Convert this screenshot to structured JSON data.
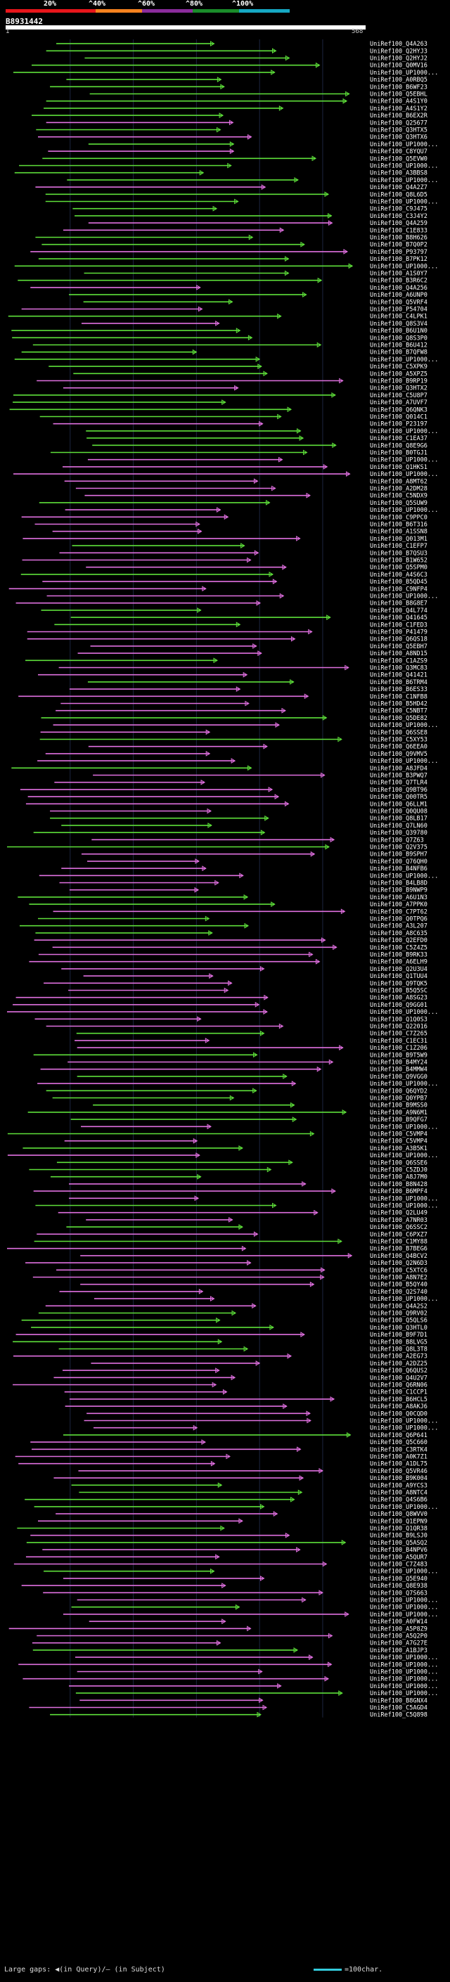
{
  "header": {
    "query_id": "B8931442",
    "ruler_start": "1",
    "ruler_end": "568"
  },
  "legend": {
    "labels": [
      "20%",
      "^40%",
      "^60%",
      "^80%",
      "^100%"
    ],
    "colors": [
      "#e8161b",
      "#f5821f",
      "#8b2c9c",
      "#1a8c2a",
      "#16a8c4"
    ]
  },
  "footer": {
    "gaps_text": "Large gaps: ◀(in Query)/— (in Subject)",
    "scale_text": "=100char."
  },
  "chart_data": {
    "type": "alignment-overview",
    "query_length": 568,
    "hits": [
      "UniRef100_Q4A263",
      "UniRef100_Q2HYJ3",
      "UniRef100_Q2HYJ2",
      "UniRef100_Q0MV16",
      "UniRef100_UP1000...",
      "UniRef100_A0RBQ5",
      "UniRef100_B6WF23",
      "UniRef100_Q5EBHL",
      "UniRef100_A4S1Y0",
      "UniRef100_A4S1Y2",
      "UniRef100_B6EX2R",
      "UniRef100_Q25677",
      "UniRef100_Q3HTX5",
      "UniRef100_Q3HTX6",
      "UniRef100_UP1000...",
      "UniRef100_C8YQU7",
      "UniRef100_Q5EVW0",
      "UniRef100_UP1000...",
      "UniRef100_A3BBS8",
      "UniRef100_UP1000...",
      "UniRef100_Q4A2Z7",
      "UniRef100_Q8L6D5",
      "UniRef100_UP1000...",
      "UniRef100_C9J475",
      "UniRef100_C3J4Y2",
      "UniRef100_Q4A259",
      "UniRef100_C1E833",
      "UniRef100_B8H626",
      "UniRef100_B7Q0P2",
      "UniRef100_P93797",
      "UniRef100_B7PK12",
      "UniRef100_UP1000...",
      "UniRef100_A1S0Y7",
      "UniRef100_B3R6C2",
      "UniRef100_Q4A256",
      "UniRef100_A6UNP0",
      "UniRef100_Q5VRF4",
      "UniRef100_P54704",
      "UniRef100_C4LPK1",
      "UniRef100_Q8S3V4",
      "UniRef100_B6U1N0",
      "UniRef100_Q8S3P0",
      "UniRef100_B6U412",
      "UniRef100_B7QFW8",
      "UniRef100_UP1000...",
      "UniRef100_C5XPK9",
      "UniRef100_A5XPZ5",
      "UniRef100_B9RP19",
      "UniRef100_Q3HTX2",
      "UniRef100_C5U8P7",
      "UniRef100_A7UVF7",
      "UniRef100_Q6QNK3",
      "UniRef100_Q014C1",
      "UniRef100_P23197",
      "UniRef100_UP1000...",
      "UniRef100_C1EA37",
      "UniRef100_Q8E9G6",
      "UniRef100_B0TGJ1",
      "UniRef100_UP1000...",
      "UniRef100_Q1HKS1",
      "UniRef100_UP1000...",
      "UniRef100_A8MT62",
      "UniRef100_A2DM28",
      "UniRef100_C5NDX9",
      "UniRef100_Q5SUW9",
      "UniRef100_UP1000...",
      "UniRef100_C9PPC0",
      "UniRef100_B6T316",
      "UniRef100_A1SSN8",
      "UniRef100_Q013M1",
      "UniRef100_C1EFP7",
      "UniRef100_B7QSU3",
      "UniRef100_B1W652",
      "UniRef100_Q5SPM0",
      "UniRef100_A4S6C3",
      "UniRef100_B5QD45",
      "UniRef100_C9NFP4",
      "UniRef100_UP1000...",
      "UniRef100_B8G8E7",
      "UniRef100_Q4L774",
      "UniRef100_Q41645",
      "UniRef100_C1FED3",
      "UniRef100_P41479",
      "UniRef100_Q6QS18",
      "UniRef100_Q5EBH7",
      "UniRef100_A8ND15",
      "UniRef100_C1AZS9",
      "UniRef100_Q3MC83",
      "UniRef100_Q41421",
      "UniRef100_B6TRM4",
      "UniRef100_B6ES33",
      "UniRef100_C1NFB8",
      "UniRef100_B5HD42",
      "UniRef100_C5NBT7",
      "UniRef100_Q5DE82",
      "UniRef100_UP1000...",
      "UniRef100_Q6SSE8",
      "UniRef100_C5XY53",
      "UniRef100_Q6EEA0",
      "UniRef100_Q9VMV5",
      "UniRef100_UP1000...",
      "UniRef100_A8JFD4",
      "UniRef100_B3PWQ7",
      "UniRef100_Q7TLR4",
      "UniRef100_Q9BT96",
      "UniRef100_Q00TR5",
      "UniRef100_Q6LLM1",
      "UniRef100_Q0QU08",
      "UniRef100_Q8LB17",
      "UniRef100_Q7LN60",
      "UniRef100_Q39780",
      "UniRef100_Q7Z63",
      "UniRef100_Q2V375",
      "UniRef100_B9SPH7",
      "UniRef100_Q76QH0",
      "UniRef100_B4NFB6",
      "UniRef100_UP1000...",
      "UniRef100_B4LB8D",
      "UniRef100_B9NWP9",
      "UniRef100_A6U1N3",
      "UniRef100_A7PPK0",
      "UniRef100_C7PT62",
      "UniRef100_Q0TPQ6",
      "UniRef100_A3L207",
      "UniRef100_A8C635",
      "UniRef100_Q2EFD0",
      "UniRef100_C5Z4Z5",
      "UniRef100_B9RK33",
      "UniRef100_A6ELH9",
      "UniRef100_Q2U3U4",
      "UniRef100_Q1TUU4",
      "UniRef100_Q9TQK5",
      "UniRef100_B5Q5SC",
      "UniRef100_A8SG23",
      "UniRef100_Q9GG01",
      "UniRef100_UP1000...",
      "UniRef100_Q1Q0S3",
      "UniRef100_Q22016",
      "UniRef100_C7Z265",
      "UniRef100_C1EC31",
      "UniRef100_C1Z206",
      "UniRef100_B9T5W9",
      "UniRef100_B4MY24",
      "UniRef100_B4MMW4",
      "UniRef100_Q9VGG0",
      "UniRef100_UP1000...",
      "UniRef100_Q6QYD2",
      "UniRef100_Q0YPB7",
      "UniRef100_B9MSS0",
      "UniRef100_A9N6M1",
      "UniRef100_B9QFG7",
      "UniRef100_UP1000...",
      "UniRef100_C5VMP4",
      "UniRef100_C5VMP4",
      "UniRef100_A3B5K1",
      "UniRef100_UP1000...",
      "UniRef100_Q6SSE6",
      "UniRef100_C5ZDJ0",
      "UniRef100_A8J7M0",
      "UniRef100_B8N428",
      "UniRef100_B6MPF4",
      "UniRef100_UP1000...",
      "UniRef100_UP1000...",
      "UniRef100_Q2LU49",
      "UniRef100_A7NR03",
      "UniRef100_Q6SSC2",
      "UniRef100_C6PXZ7",
      "UniRef100_C1MY88",
      "UniRef100_B7BEG6",
      "UniRef100_Q4BCV2",
      "UniRef100_Q2N6D3",
      "UniRef100_C5XTC6",
      "UniRef100_A8N7E2",
      "UniRef100_B5QY40",
      "UniRef100_Q2S740",
      "UniRef100_UP1000...",
      "UniRef100_Q4A2S2",
      "UniRef100_Q9RV02",
      "UniRef100_Q5QLS6",
      "UniRef100_Q3HTL0",
      "UniRef100_B9F7D1",
      "UniRef100_B8LVG5",
      "UniRef100_Q8L3T8",
      "UniRef100_A2EG73",
      "UniRef100_A2DZ25",
      "UniRef100_Q6QUS2",
      "UniRef100_Q4U2V7",
      "UniRef100_Q6RN06",
      "UniRef100_C1CCP1",
      "UniRef100_B6HCL5",
      "UniRef100_A8AKJ6",
      "UniRef100_Q0CQD0",
      "UniRef100_UP1000...",
      "UniRef100_UP1000...",
      "UniRef100_Q6P641",
      "UniRef100_Q5C660",
      "UniRef100_C3RTK4",
      "UniRef100_A0K7Z1",
      "UniRef100_A1DL75",
      "UniRef100_Q5VR46",
      "UniRef100_B9K004",
      "UniRef100_A9YCS3",
      "UniRef100_A8NTC4",
      "UniRef100_Q4S6B6",
      "UniRef100_UP1000...",
      "UniRef100_Q8WVV0",
      "UniRef100_Q1EPN9",
      "UniRef100_Q1QR38",
      "UniRef100_B9LSJ0",
      "UniRef100_Q5ASQ2",
      "UniRef100_B4NPV6",
      "UniRef100_A5QUR7",
      "UniRef100_C7Z483",
      "UniRef100_UP1000...",
      "UniRef100_Q5E940",
      "UniRef100_Q8E938",
      "UniRef100_Q7S663",
      "UniRef100_UP1000...",
      "UniRef100_UP1000...",
      "UniRef100_UP1000...",
      "UniRef100_A0FW14",
      "UniRef100_A5P8Z9",
      "UniRef100_A5Q2P0",
      "UniRef100_A7G27E",
      "UniRef100_A1BJP3",
      "UniRef100_UP1000...",
      "UniRef100_UP1000...",
      "UniRef100_UP1000...",
      "UniRef100_UP1000...",
      "UniRef100_UP1000...",
      "UniRef100_UP1000...",
      "UniRef100_B8GNX4",
      "UniRef100_C5AGD4",
      "UniRef100_C5Q898"
    ]
  }
}
